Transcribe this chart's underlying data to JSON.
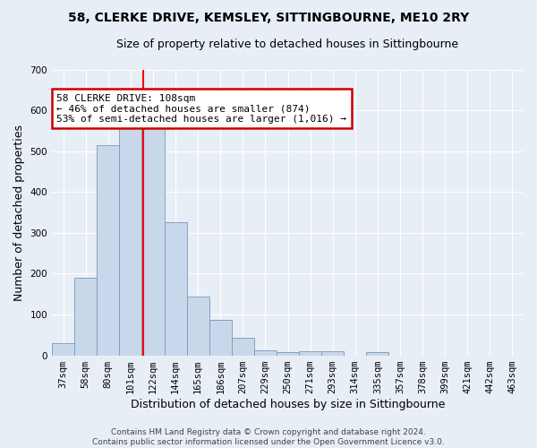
{
  "title": "58, CLERKE DRIVE, KEMSLEY, SITTINGBOURNE, ME10 2RY",
  "subtitle": "Size of property relative to detached houses in Sittingbourne",
  "xlabel": "Distribution of detached houses by size in Sittingbourne",
  "ylabel": "Number of detached properties",
  "bar_color": "#c8d8ea",
  "bar_edge_color": "#7799bb",
  "background_color": "#e8eef5",
  "grid_color": "#ffffff",
  "categories": [
    "37sqm",
    "58sqm",
    "80sqm",
    "101sqm",
    "122sqm",
    "144sqm",
    "165sqm",
    "186sqm",
    "207sqm",
    "229sqm",
    "250sqm",
    "271sqm",
    "293sqm",
    "314sqm",
    "335sqm",
    "357sqm",
    "378sqm",
    "399sqm",
    "421sqm",
    "442sqm",
    "463sqm"
  ],
  "values": [
    30,
    190,
    515,
    570,
    568,
    325,
    143,
    87,
    42,
    12,
    8,
    10,
    10,
    0,
    8,
    0,
    0,
    0,
    0,
    0,
    0
  ],
  "red_line_x": 3.55,
  "annotation_text": "58 CLERKE DRIVE: 108sqm\n← 46% of detached houses are smaller (874)\n53% of semi-detached houses are larger (1,016) →",
  "annotation_box_color": "#ffffff",
  "annotation_box_edge": "#cc0000",
  "ylim": [
    0,
    700
  ],
  "yticks": [
    0,
    100,
    200,
    300,
    400,
    500,
    600,
    700
  ],
  "footnote": "Contains HM Land Registry data © Crown copyright and database right 2024.\nContains public sector information licensed under the Open Government Licence v3.0.",
  "title_fontsize": 10,
  "subtitle_fontsize": 9,
  "xlabel_fontsize": 9,
  "ylabel_fontsize": 9,
  "tick_fontsize": 7.5,
  "footnote_fontsize": 6.5
}
